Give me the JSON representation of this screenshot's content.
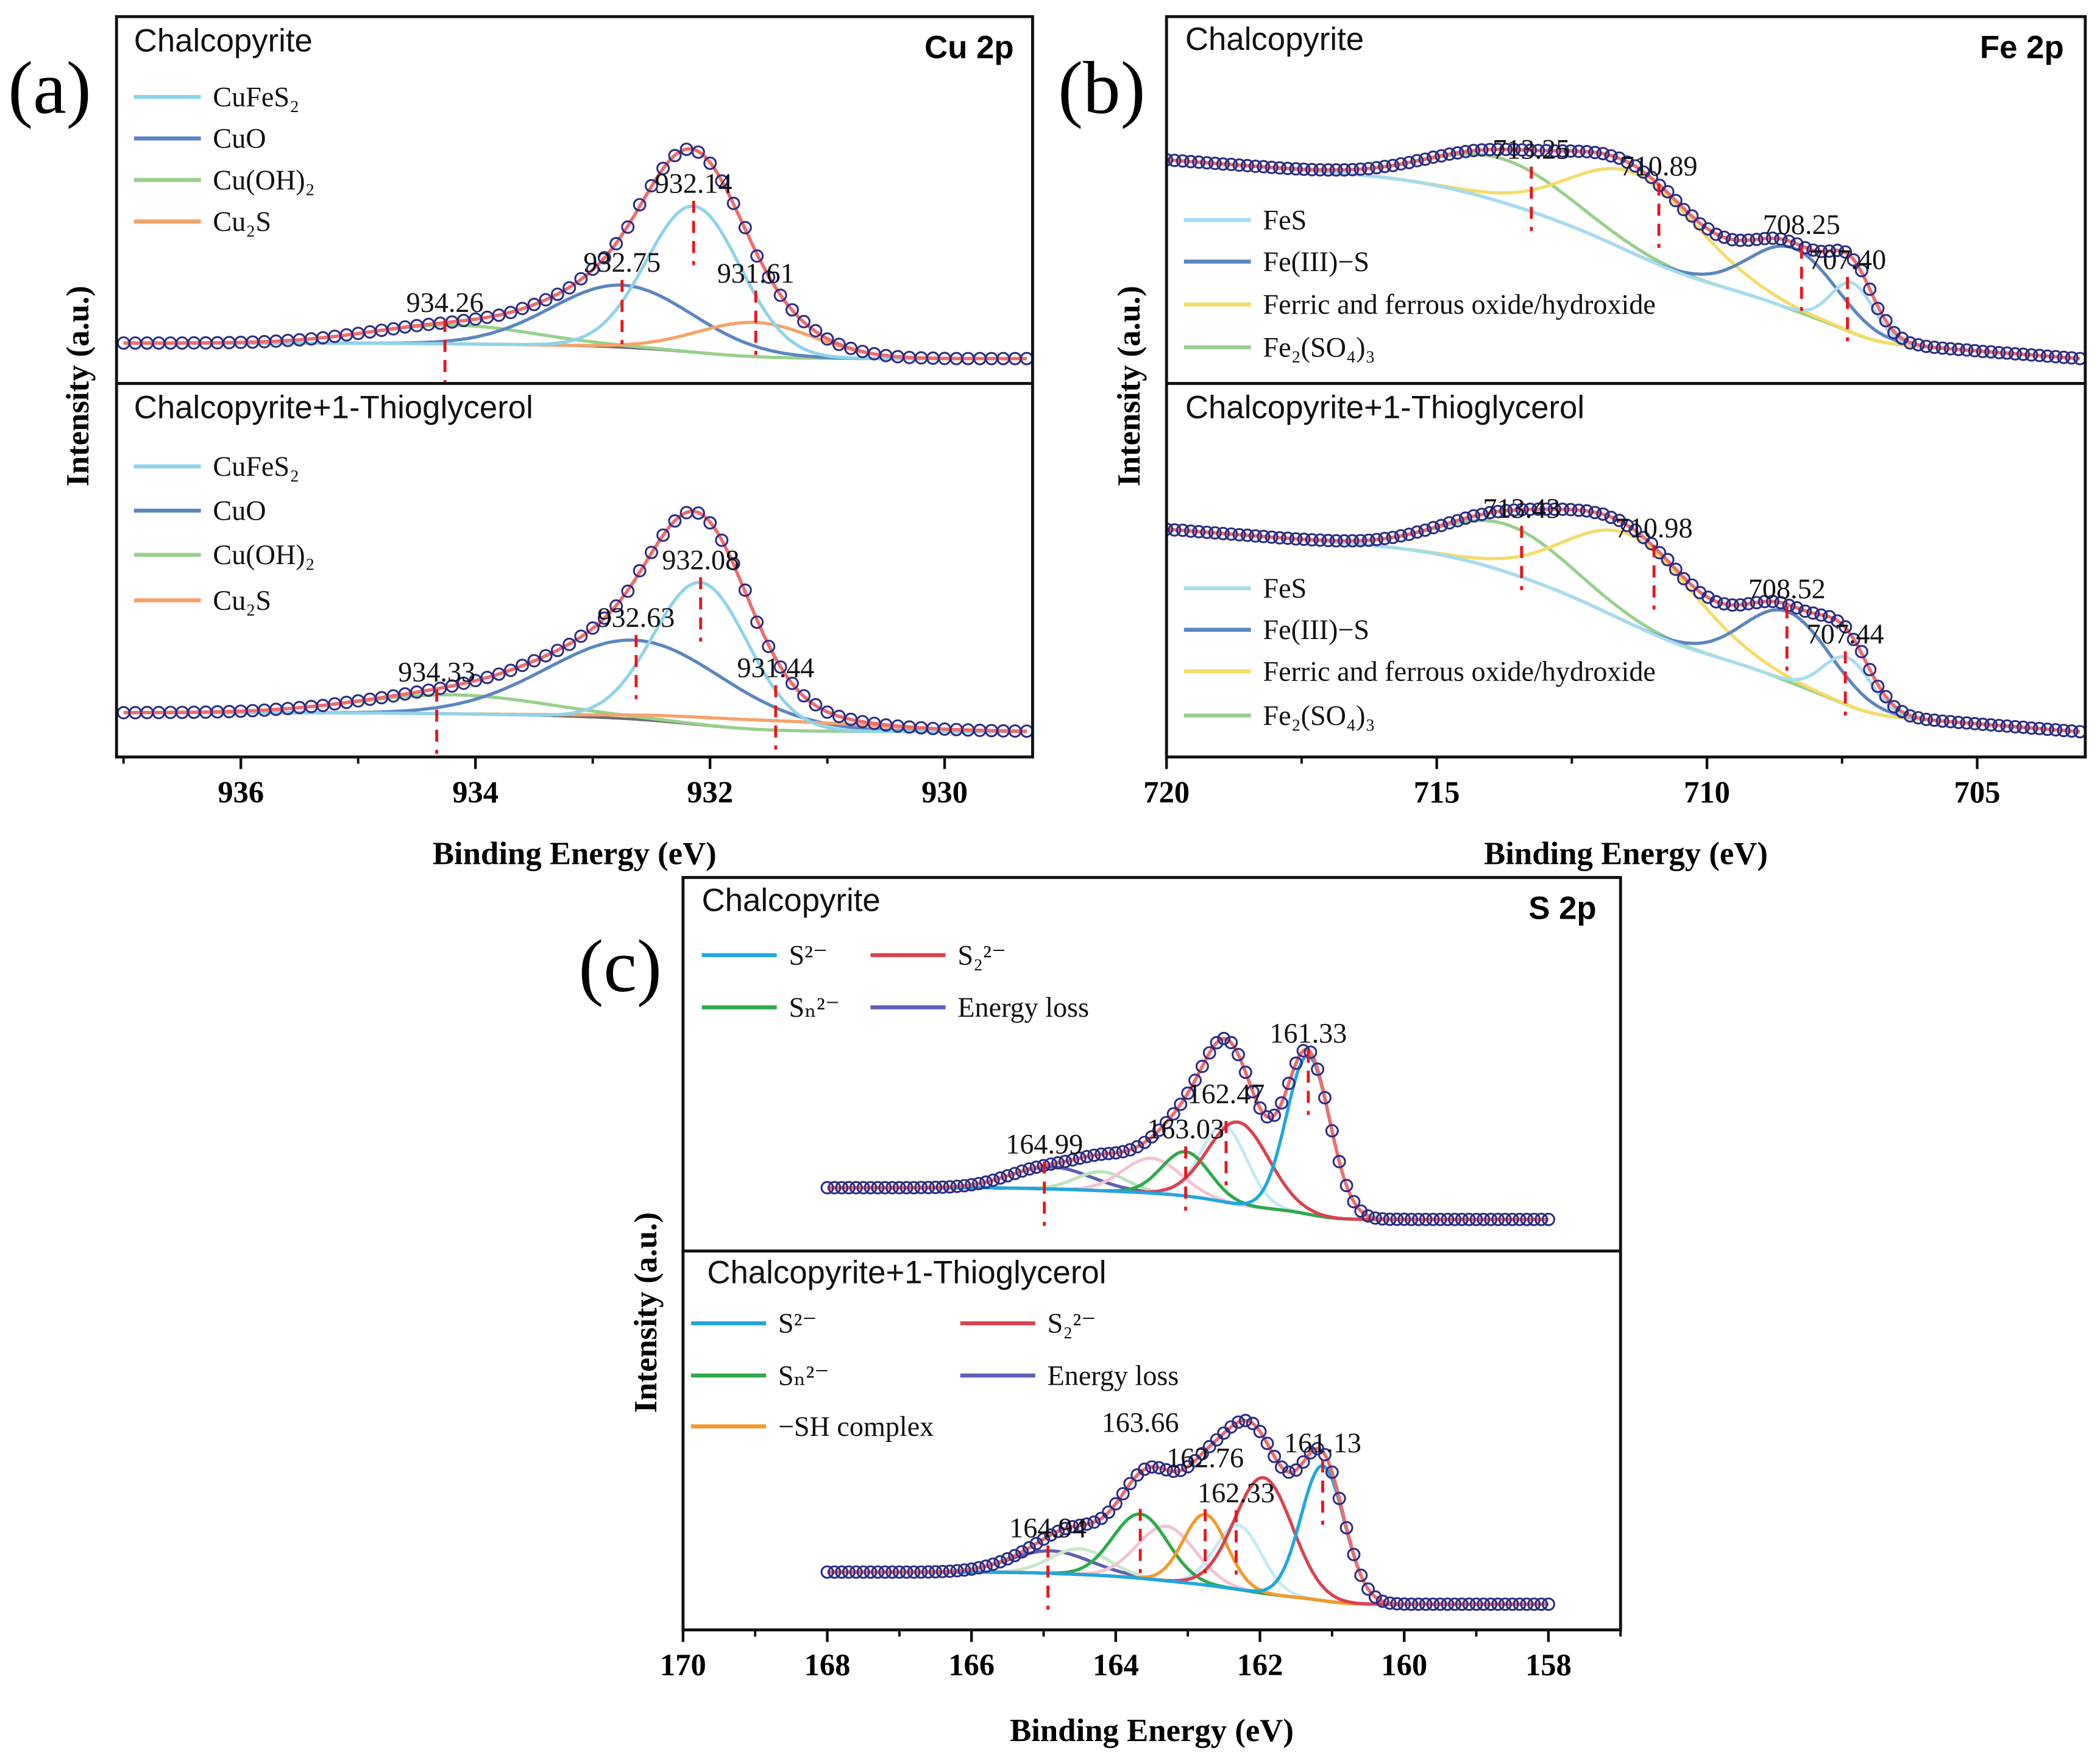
{
  "chart_data": [
    {
      "type": "line",
      "panel_letter": "(a)",
      "title": "Cu 2p",
      "xlabel": "Binding Energy (eV)",
      "ylabel": "Intensity (a.u.)",
      "xlim": [
        937.06,
        929.25
      ],
      "xdata": [
        937.0,
        929.3
      ],
      "xticks": [
        936,
        934,
        932,
        930
      ],
      "xtick_labels": [
        "936",
        "934",
        "932",
        "930"
      ],
      "minor_step": 1,
      "point_step": 0.1,
      "subplots": [
        {
          "title": "Chalcopyrite",
          "ylim": [
            -0.08,
            1.1
          ],
          "background": {
            "low": 0.0,
            "high": 0.05,
            "slope": 0.0
          },
          "legend": [
            {
              "label": "CuFeS₂",
              "color": "#8fd3ea"
            },
            {
              "label": "CuO",
              "color": "#5b86c0"
            },
            {
              "label": "Cu(OH)₂",
              "color": "#98d08c"
            },
            {
              "label": "Cu₂S",
              "color": "#f4a36a"
            }
          ],
          "peaks": [
            {
              "name": "Cu(OH)₂",
              "center": 934.2,
              "height": 0.06,
              "sigma": 0.7,
              "color": "#98d08c"
            },
            {
              "name": "CuO",
              "center": 932.75,
              "height": 0.2,
              "sigma": 0.6,
              "color": "#5b86c0"
            },
            {
              "name": "Cu₂S",
              "center": 931.61,
              "height": 0.11,
              "sigma": 0.5,
              "color": "#f4a36a"
            },
            {
              "name": "CuFeS₂",
              "center": 932.14,
              "height": 0.47,
              "sigma": 0.4,
              "color": "#8fd3ea"
            }
          ],
          "annotations": [
            {
              "value": 934.26,
              "text": "934.26"
            },
            {
              "value": 932.75,
              "text": "932.75"
            },
            {
              "value": 932.14,
              "text": "932.14"
            },
            {
              "value": 931.61,
              "text": "931.61"
            }
          ]
        },
        {
          "title": "Chalcopyrite+1-Thioglycerol",
          "ylim": [
            -0.08,
            1.1
          ],
          "background": {
            "low": 0.0,
            "high": 0.06,
            "slope": 0.0
          },
          "legend": [
            {
              "label": "CuFeS₂",
              "color": "#8fd3ea"
            },
            {
              "label": "CuO",
              "color": "#5b86c0"
            },
            {
              "label": "Cu(OH)₂",
              "color": "#98d08c"
            },
            {
              "label": "Cu₂S",
              "color": "#f4a36a"
            }
          ],
          "peaks": [
            {
              "name": "Cu(OH)₂",
              "center": 934.2,
              "height": 0.06,
              "sigma": 0.8,
              "color": "#98d08c"
            },
            {
              "name": "CuO",
              "center": 932.63,
              "height": 0.25,
              "sigma": 0.75,
              "color": "#5b86c0"
            },
            {
              "name": "Cu₂S",
              "center": 931.5,
              "height": 0.03,
              "sigma": 0.9,
              "color": "#f4a36a"
            },
            {
              "name": "CuFeS₂",
              "center": 932.08,
              "height": 0.45,
              "sigma": 0.4,
              "color": "#8fd3ea"
            }
          ],
          "annotations": [
            {
              "value": 934.33,
              "text": "934.33"
            },
            {
              "value": 932.63,
              "text": "932.63"
            },
            {
              "value": 932.08,
              "text": "932.08"
            },
            {
              "value": 931.44,
              "text": "931.44"
            }
          ]
        }
      ]
    },
    {
      "type": "line",
      "panel_letter": "(b)",
      "title": "Fe 2p",
      "xlabel": "Binding Energy (eV)",
      "ylabel": "Intensity (a.u.)",
      "xlim": [
        720,
        703
      ],
      "xdata": [
        720,
        703.1
      ],
      "xticks": [
        720,
        715,
        710,
        705
      ],
      "xtick_labels": [
        "720",
        "715",
        "710",
        "705"
      ],
      "minor_step": 2.5,
      "point_step": 0.15,
      "subplots": [
        {
          "title": "Chalcopyrite",
          "ylim": [
            -0.08,
            1.1
          ],
          "background": {
            "low": 0.0,
            "high": 0.42,
            "slope": 0.013
          },
          "legend": [
            {
              "label": "FeS",
              "color": "#a7dcef"
            },
            {
              "label": "Fe(III)−S",
              "color": "#5b86c0"
            },
            {
              "label": "Ferric and ferrous oxide/hydroxide",
              "color": "#f5dc6a"
            },
            {
              "label": "Fe₂(SO₄)₃",
              "color": "#98d08c"
            }
          ],
          "peaks": [
            {
              "name": "Fe₂(SO₄)₃",
              "center": 713.8,
              "height": 0.14,
              "sigma": 1.3,
              "color": "#98d08c"
            },
            {
              "name": "Ferric and ferrous oxide/hydroxide",
              "center": 711.3,
              "height": 0.26,
              "sigma": 1.2,
              "color": "#f5dc6a"
            },
            {
              "name": "Fe(III)−S",
              "center": 708.4,
              "height": 0.2,
              "sigma": 0.8,
              "color": "#5b86c0"
            },
            {
              "name": "FeS",
              "center": 707.3,
              "height": 0.16,
              "sigma": 0.4,
              "color": "#a7dcef"
            }
          ],
          "annotations": [
            {
              "value": 713.25,
              "text": "713.25"
            },
            {
              "value": 710.89,
              "text": "710.89"
            },
            {
              "value": 708.25,
              "text": "708.25"
            },
            {
              "value": 707.4,
              "text": "707.40"
            }
          ]
        },
        {
          "title": "Chalcopyrite+1-Thioglycerol",
          "ylim": [
            -0.08,
            1.1
          ],
          "background": {
            "low": 0.0,
            "high": 0.42,
            "slope": 0.013
          },
          "legend": [
            {
              "label": "FeS",
              "color": "#a7dcef"
            },
            {
              "label": "Fe(III)−S",
              "color": "#5b86c0"
            },
            {
              "label": "Ferric and ferrous oxide/hydroxide",
              "color": "#f5dc6a"
            },
            {
              "label": "Fe₂(SO₄)₃",
              "color": "#98d08c"
            }
          ],
          "peaks": [
            {
              "name": "Fe₂(SO₄)₃",
              "center": 713.7,
              "height": 0.15,
              "sigma": 1.2,
              "color": "#98d08c"
            },
            {
              "name": "Ferric and ferrous oxide/hydroxide",
              "center": 711.4,
              "height": 0.28,
              "sigma": 1.2,
              "color": "#f5dc6a"
            },
            {
              "name": "Fe(III)−S",
              "center": 708.5,
              "height": 0.22,
              "sigma": 0.8,
              "color": "#5b86c0"
            },
            {
              "name": "FeS",
              "center": 707.4,
              "height": 0.15,
              "sigma": 0.45,
              "color": "#a7dcef"
            }
          ],
          "annotations": [
            {
              "value": 713.43,
              "text": "713.43"
            },
            {
              "value": 710.98,
              "text": "710.98"
            },
            {
              "value": 708.52,
              "text": "708.52"
            },
            {
              "value": 707.44,
              "text": "707.44"
            }
          ]
        }
      ]
    },
    {
      "type": "line",
      "panel_letter": "(c)",
      "title": "S 2p",
      "xlabel": "Binding Energy (eV)",
      "ylabel": "Intensity (a.u.)",
      "xlim": [
        170,
        157
      ],
      "xdata": [
        168,
        158
      ],
      "xticks": [
        170,
        168,
        166,
        164,
        162,
        160,
        158
      ],
      "xtick_labels": [
        "170",
        "168",
        "166",
        "164",
        "162",
        "160",
        "158"
      ],
      "minor_step": 1,
      "point_step": 0.1,
      "subplots": [
        {
          "title": "Chalcopyrite",
          "ylim": [
            -0.08,
            1.1
          ],
          "background": {
            "low": 0.02,
            "high": 0.12,
            "slope": 0.0
          },
          "legend": [
            {
              "label": "S²⁻",
              "color": "#1ea7e1"
            },
            {
              "label": "S₂²⁻",
              "color": "#d9434f"
            },
            {
              "label": "Sₙ²⁻",
              "color": "#2eaa4a"
            },
            {
              "label": "Energy loss",
              "color": "#5d5fb6"
            }
          ],
          "peaks": [
            {
              "name": "Energy loss",
              "center": 164.9,
              "height": 0.07,
              "sigma": 0.55,
              "color": "#5d5fb6"
            },
            {
              "name": "Sₙ²⁻ 2p1/2",
              "center": 164.2,
              "height": 0.06,
              "sigma": 0.35,
              "color": "#b9e3bd"
            },
            {
              "name": "S₂²⁻ 2p1/2",
              "center": 163.5,
              "height": 0.11,
              "sigma": 0.4,
              "color": "#f3c4d3"
            },
            {
              "name": "S²⁻ 2p1/2",
              "center": 162.5,
              "height": 0.24,
              "sigma": 0.32,
              "color": "#c6e9f7"
            },
            {
              "name": "Sₙ²⁻",
              "center": 163.03,
              "height": 0.14,
              "sigma": 0.33,
              "color": "#2eaa4a"
            },
            {
              "name": "S₂²⁻",
              "center": 162.3,
              "height": 0.26,
              "sigma": 0.42,
              "color": "#d9434f"
            },
            {
              "name": "S²⁻",
              "center": 161.33,
              "height": 0.5,
              "sigma": 0.3,
              "color": "#1ea7e1"
            }
          ],
          "annotations": [
            {
              "value": 164.99,
              "text": "164.99"
            },
            {
              "value": 163.03,
              "text": "163.03"
            },
            {
              "value": 162.47,
              "text": "162.47"
            },
            {
              "value": 161.33,
              "text": "161.33"
            }
          ]
        },
        {
          "title": "Chalcopyrite+1-Thioglycerol",
          "ylim": [
            -0.08,
            1.1
          ],
          "background": {
            "low": 0.0,
            "high": 0.1,
            "slope": 0.0
          },
          "legend": [
            {
              "label": "S²⁻",
              "color": "#1ea7e1"
            },
            {
              "label": "S₂²⁻",
              "color": "#d9434f"
            },
            {
              "label": "Sₙ²⁻",
              "color": "#2eaa4a"
            },
            {
              "label": "Energy loss",
              "color": "#5d5fb6"
            },
            {
              "label": "−SH complex",
              "color": "#f39a2e"
            }
          ],
          "peaks": [
            {
              "name": "Energy loss",
              "center": 164.9,
              "height": 0.07,
              "sigma": 0.55,
              "color": "#5d5fb6"
            },
            {
              "name": "Sₙ²⁻ 2p1/2",
              "center": 164.5,
              "height": 0.08,
              "sigma": 0.4,
              "color": "#c9e8c8"
            },
            {
              "name": "S₂²⁻ 2p1/2",
              "center": 163.3,
              "height": 0.17,
              "sigma": 0.4,
              "color": "#f3c4d3"
            },
            {
              "name": "S²⁻ 2p1/2",
              "center": 162.3,
              "height": 0.2,
              "sigma": 0.32,
              "color": "#c6e9f7"
            },
            {
              "name": "Sₙ²⁻",
              "center": 163.66,
              "height": 0.2,
              "sigma": 0.38,
              "color": "#2eaa4a"
            },
            {
              "name": "−SH complex",
              "center": 162.76,
              "height": 0.22,
              "sigma": 0.3,
              "color": "#f39a2e"
            },
            {
              "name": "S₂²⁻",
              "center": 161.95,
              "height": 0.36,
              "sigma": 0.4,
              "color": "#d9434f"
            },
            {
              "name": "S²⁻",
              "center": 161.13,
              "height": 0.42,
              "sigma": 0.3,
              "color": "#1ea7e1"
            }
          ],
          "annotations": [
            {
              "value": 164.94,
              "text": "164.94"
            },
            {
              "value": 163.66,
              "text": "163.66"
            },
            {
              "value": 162.76,
              "text": "162.76"
            },
            {
              "value": 162.33,
              "text": "162.33"
            },
            {
              "value": 161.13,
              "text": "161.13"
            }
          ]
        }
      ]
    }
  ],
  "colors": {
    "fit": "#f26b6b",
    "points": "#2d2d86",
    "background": "#6e6e6e",
    "marker": "#e8161b"
  }
}
